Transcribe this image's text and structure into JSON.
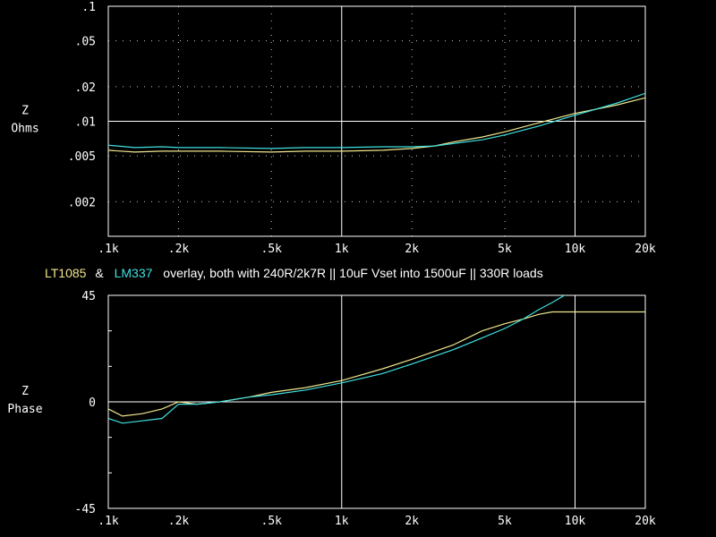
{
  "colors": {
    "background": "#000000",
    "axes": "#ffffff",
    "grid_dots": "#c8c8c8",
    "series_yellow": "#f0e68c",
    "series_cyan": "#40e0e0"
  },
  "caption": {
    "name1": "LT1085",
    "amp": "&",
    "name2": "LM337",
    "rest": "overlay, both with 240R/2k7R || 10uF Vset into 1500uF || 330R loads"
  },
  "chart_data": [
    {
      "type": "line",
      "ylabel_line1": "Z",
      "ylabel_line2": "Ohms",
      "xscale": "log",
      "yscale": "log",
      "xlim": [
        100,
        20000
      ],
      "ylim": [
        0.001,
        0.1
      ],
      "xticks": [
        {
          "v": 100,
          "label": ".1k"
        },
        {
          "v": 200,
          "label": ".2k"
        },
        {
          "v": 500,
          "label": ".5k"
        },
        {
          "v": 1000,
          "label": "1k"
        },
        {
          "v": 2000,
          "label": "2k"
        },
        {
          "v": 5000,
          "label": "5k"
        },
        {
          "v": 10000,
          "label": "10k"
        },
        {
          "v": 20000,
          "label": "20k"
        }
      ],
      "yticks": [
        {
          "v": 0.1,
          "label": ".1"
        },
        {
          "v": 0.05,
          "label": ".05"
        },
        {
          "v": 0.02,
          "label": ".02"
        },
        {
          "v": 0.01,
          "label": ".01"
        },
        {
          "v": 0.005,
          "label": ".005"
        },
        {
          "v": 0.002,
          "label": ".002"
        }
      ],
      "grid": "dotted",
      "series": [
        {
          "name": "LT1085",
          "color": "#f0e68c",
          "x": [
            100,
            130,
            170,
            200,
            300,
            500,
            700,
            1000,
            1500,
            2000,
            2500,
            3000,
            4000,
            5000,
            7000,
            10000,
            15000,
            20000
          ],
          "y": [
            0.0056,
            0.0054,
            0.0055,
            0.0055,
            0.0055,
            0.0054,
            0.0055,
            0.0055,
            0.0056,
            0.0058,
            0.0061,
            0.0066,
            0.0073,
            0.0081,
            0.0097,
            0.0117,
            0.0138,
            0.016
          ]
        },
        {
          "name": "LM337",
          "color": "#40e0e0",
          "x": [
            100,
            130,
            170,
            200,
            300,
            500,
            700,
            1000,
            1500,
            2000,
            2500,
            3000,
            4000,
            5000,
            7000,
            10000,
            15000,
            20000
          ],
          "y": [
            0.0062,
            0.0059,
            0.006,
            0.0059,
            0.0059,
            0.0058,
            0.0059,
            0.0059,
            0.006,
            0.006,
            0.0061,
            0.0064,
            0.0069,
            0.0076,
            0.0091,
            0.0113,
            0.0143,
            0.0175
          ]
        }
      ]
    },
    {
      "type": "line",
      "ylabel_line1": "Z",
      "ylabel_line2": "Phase",
      "xscale": "log",
      "xlim": [
        100,
        20000
      ],
      "ylim": [
        -45,
        45
      ],
      "xticks": [
        {
          "v": 100,
          "label": ".1k"
        },
        {
          "v": 200,
          "label": ".2k"
        },
        {
          "v": 500,
          "label": ".5k"
        },
        {
          "v": 1000,
          "label": "1k"
        },
        {
          "v": 2000,
          "label": "2k"
        },
        {
          "v": 5000,
          "label": "5k"
        },
        {
          "v": 10000,
          "label": "10k"
        },
        {
          "v": 20000,
          "label": "20k"
        }
      ],
      "yticks": [
        {
          "v": 45,
          "label": "45"
        },
        {
          "v": 0,
          "label": "0"
        },
        {
          "v": -45,
          "label": "-45"
        }
      ],
      "series": [
        {
          "name": "LT1085",
          "color": "#f0e68c",
          "x": [
            100,
            115,
            140,
            170,
            200,
            240,
            300,
            400,
            500,
            700,
            1000,
            1500,
            2000,
            3000,
            4000,
            5000,
            6000,
            7000,
            8000,
            10000,
            15000,
            20000
          ],
          "y": [
            -3,
            -6,
            -5,
            -3,
            0,
            -1,
            0,
            2,
            4,
            6,
            9,
            14,
            18,
            24,
            30,
            33,
            35,
            37,
            38,
            38,
            38,
            38
          ]
        },
        {
          "name": "LM337",
          "color": "#40e0e0",
          "x": [
            100,
            115,
            140,
            170,
            200,
            240,
            300,
            400,
            500,
            700,
            1000,
            1500,
            2000,
            3000,
            4000,
            5000,
            6000,
            7000,
            8000,
            9000,
            9500
          ],
          "y": [
            -7,
            -9,
            -8,
            -7,
            -1,
            -1,
            0,
            2,
            3,
            5,
            8,
            12,
            16,
            22,
            27,
            31,
            35,
            39,
            42,
            45,
            46
          ]
        }
      ]
    }
  ]
}
